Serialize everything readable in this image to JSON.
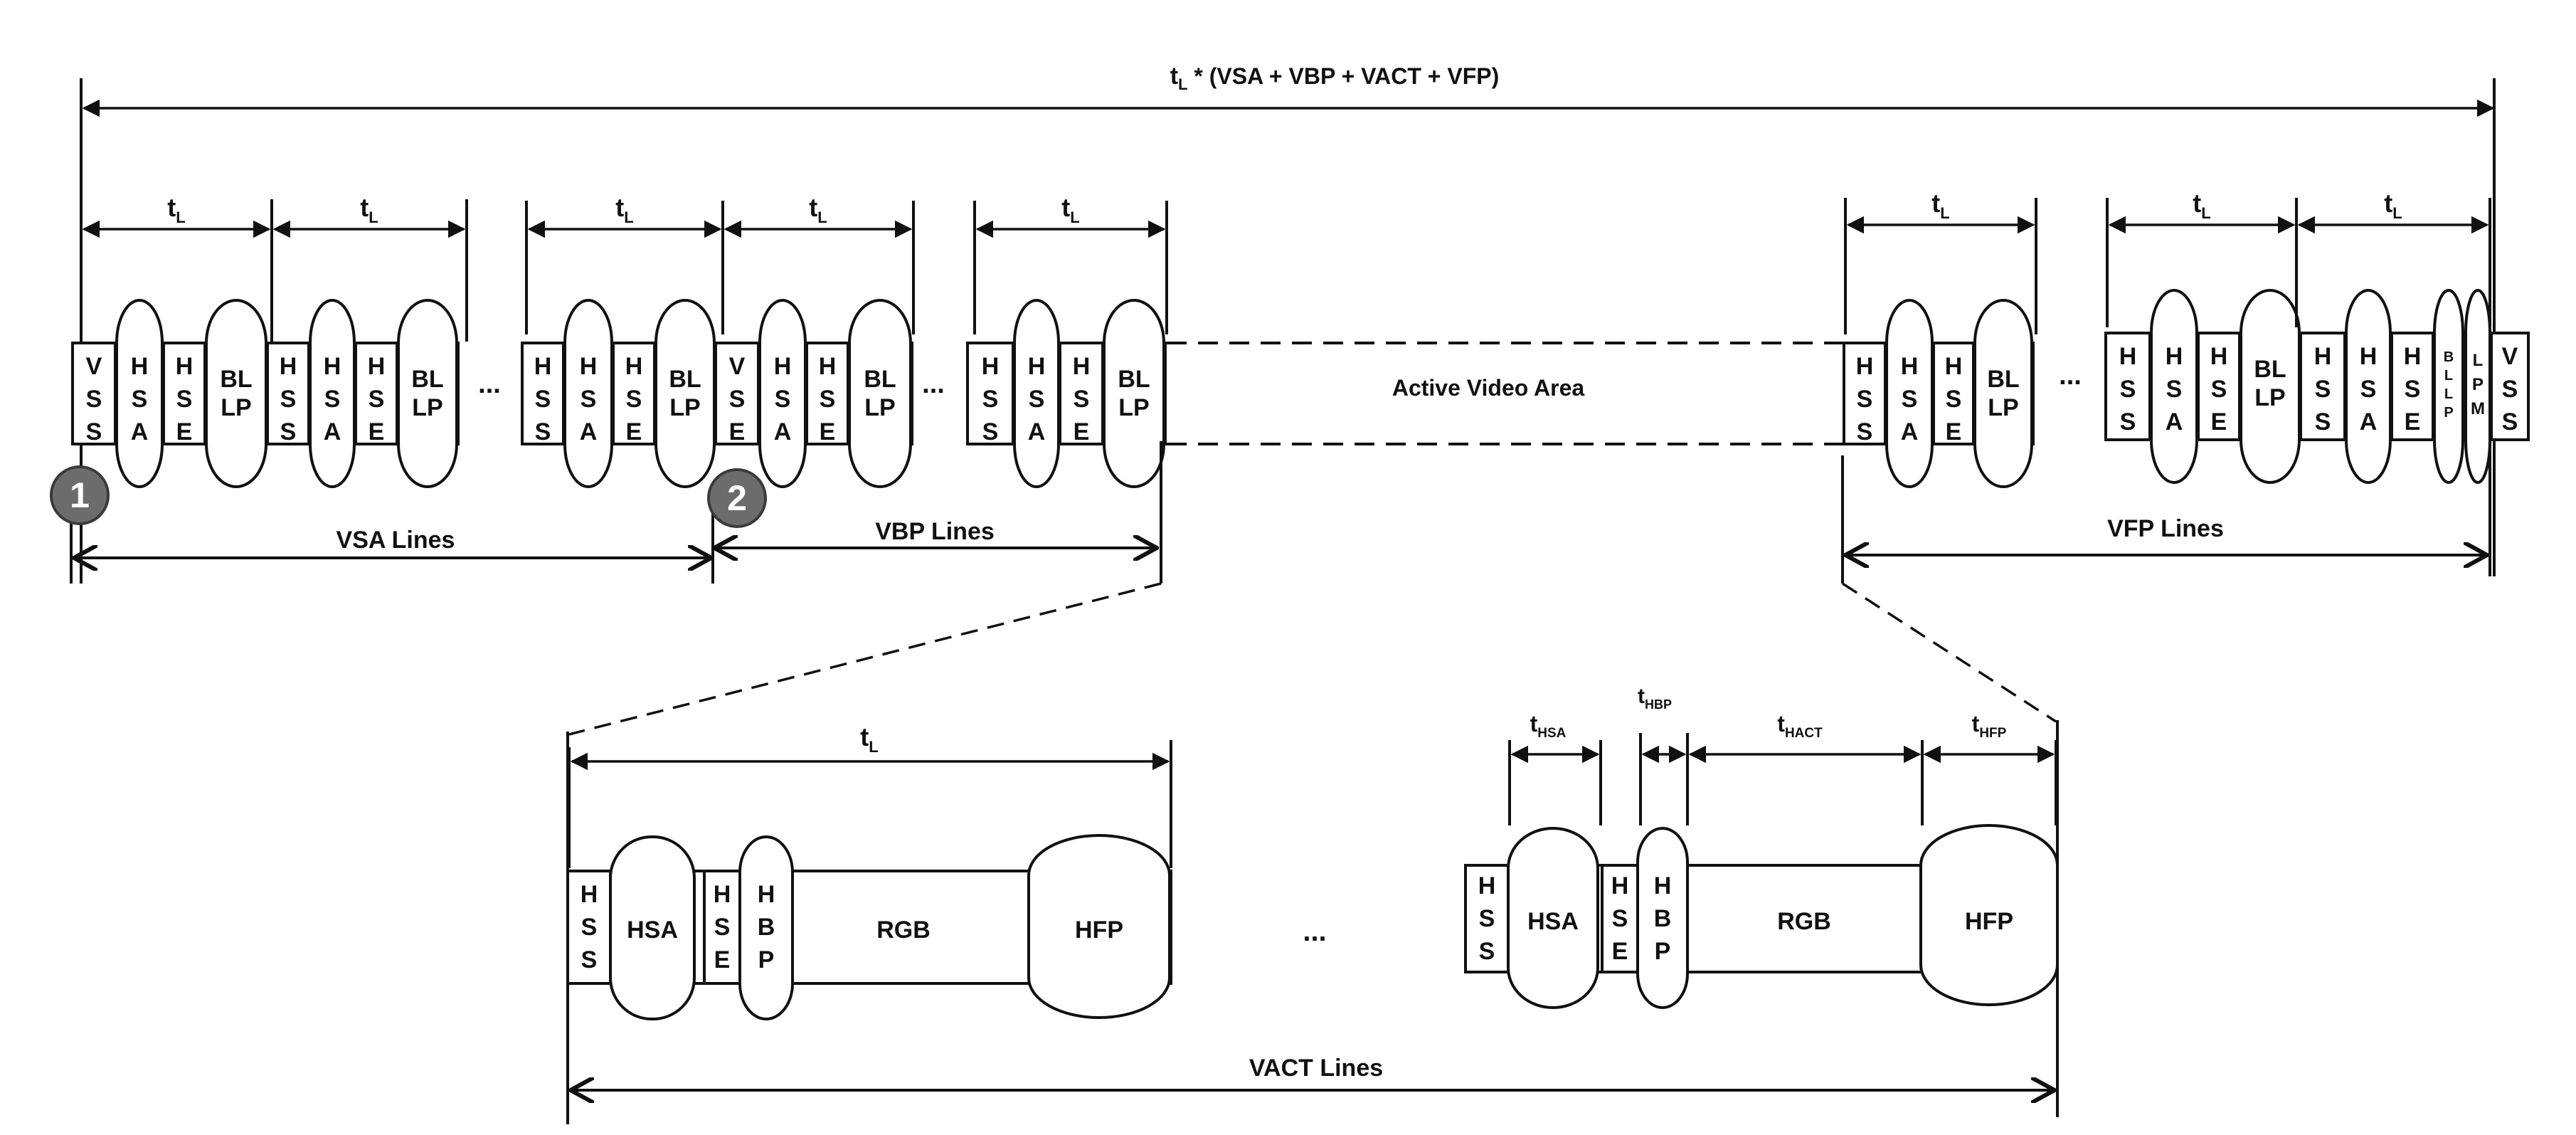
{
  "frame_label": "t",
  "frame_label_sub": "L",
  "frame_label_suffix": "* (VSA + VBP + VACT + VFP)",
  "tl_label": "t",
  "tl_sub": "L",
  "ellipsis": "...",
  "active_video_area": "Active Video Area",
  "vsa_lines": "VSA Lines",
  "vbp_lines": "VBP Lines",
  "vfp_lines": "VFP Lines",
  "vact_lines": "VACT Lines",
  "marker_1": "1",
  "marker_2": "2",
  "packets": {
    "VSS": [
      "V",
      "S",
      "S"
    ],
    "VSE": [
      "V",
      "S",
      "E"
    ],
    "HSS": [
      "H",
      "S",
      "S"
    ],
    "HSA": [
      "H",
      "S",
      "A"
    ],
    "HSE": [
      "H",
      "S",
      "E"
    ],
    "BLLP": [
      "BL",
      "LP"
    ],
    "BLLP_narrow": [
      "B",
      "L",
      "L",
      "P"
    ],
    "LPM": [
      "L",
      "P",
      "M"
    ]
  },
  "vact_detail": {
    "hss": [
      "H",
      "S",
      "S"
    ],
    "hsa": "HSA",
    "hse": [
      "H",
      "S",
      "E"
    ],
    "hbp": [
      "H",
      "B",
      "P"
    ],
    "rgb": "RGB",
    "hfp": "HFP",
    "t_hsa": "HSA",
    "t_hbp": "HBP",
    "t_hact": "HACT",
    "t_hfp": "HFP"
  }
}
